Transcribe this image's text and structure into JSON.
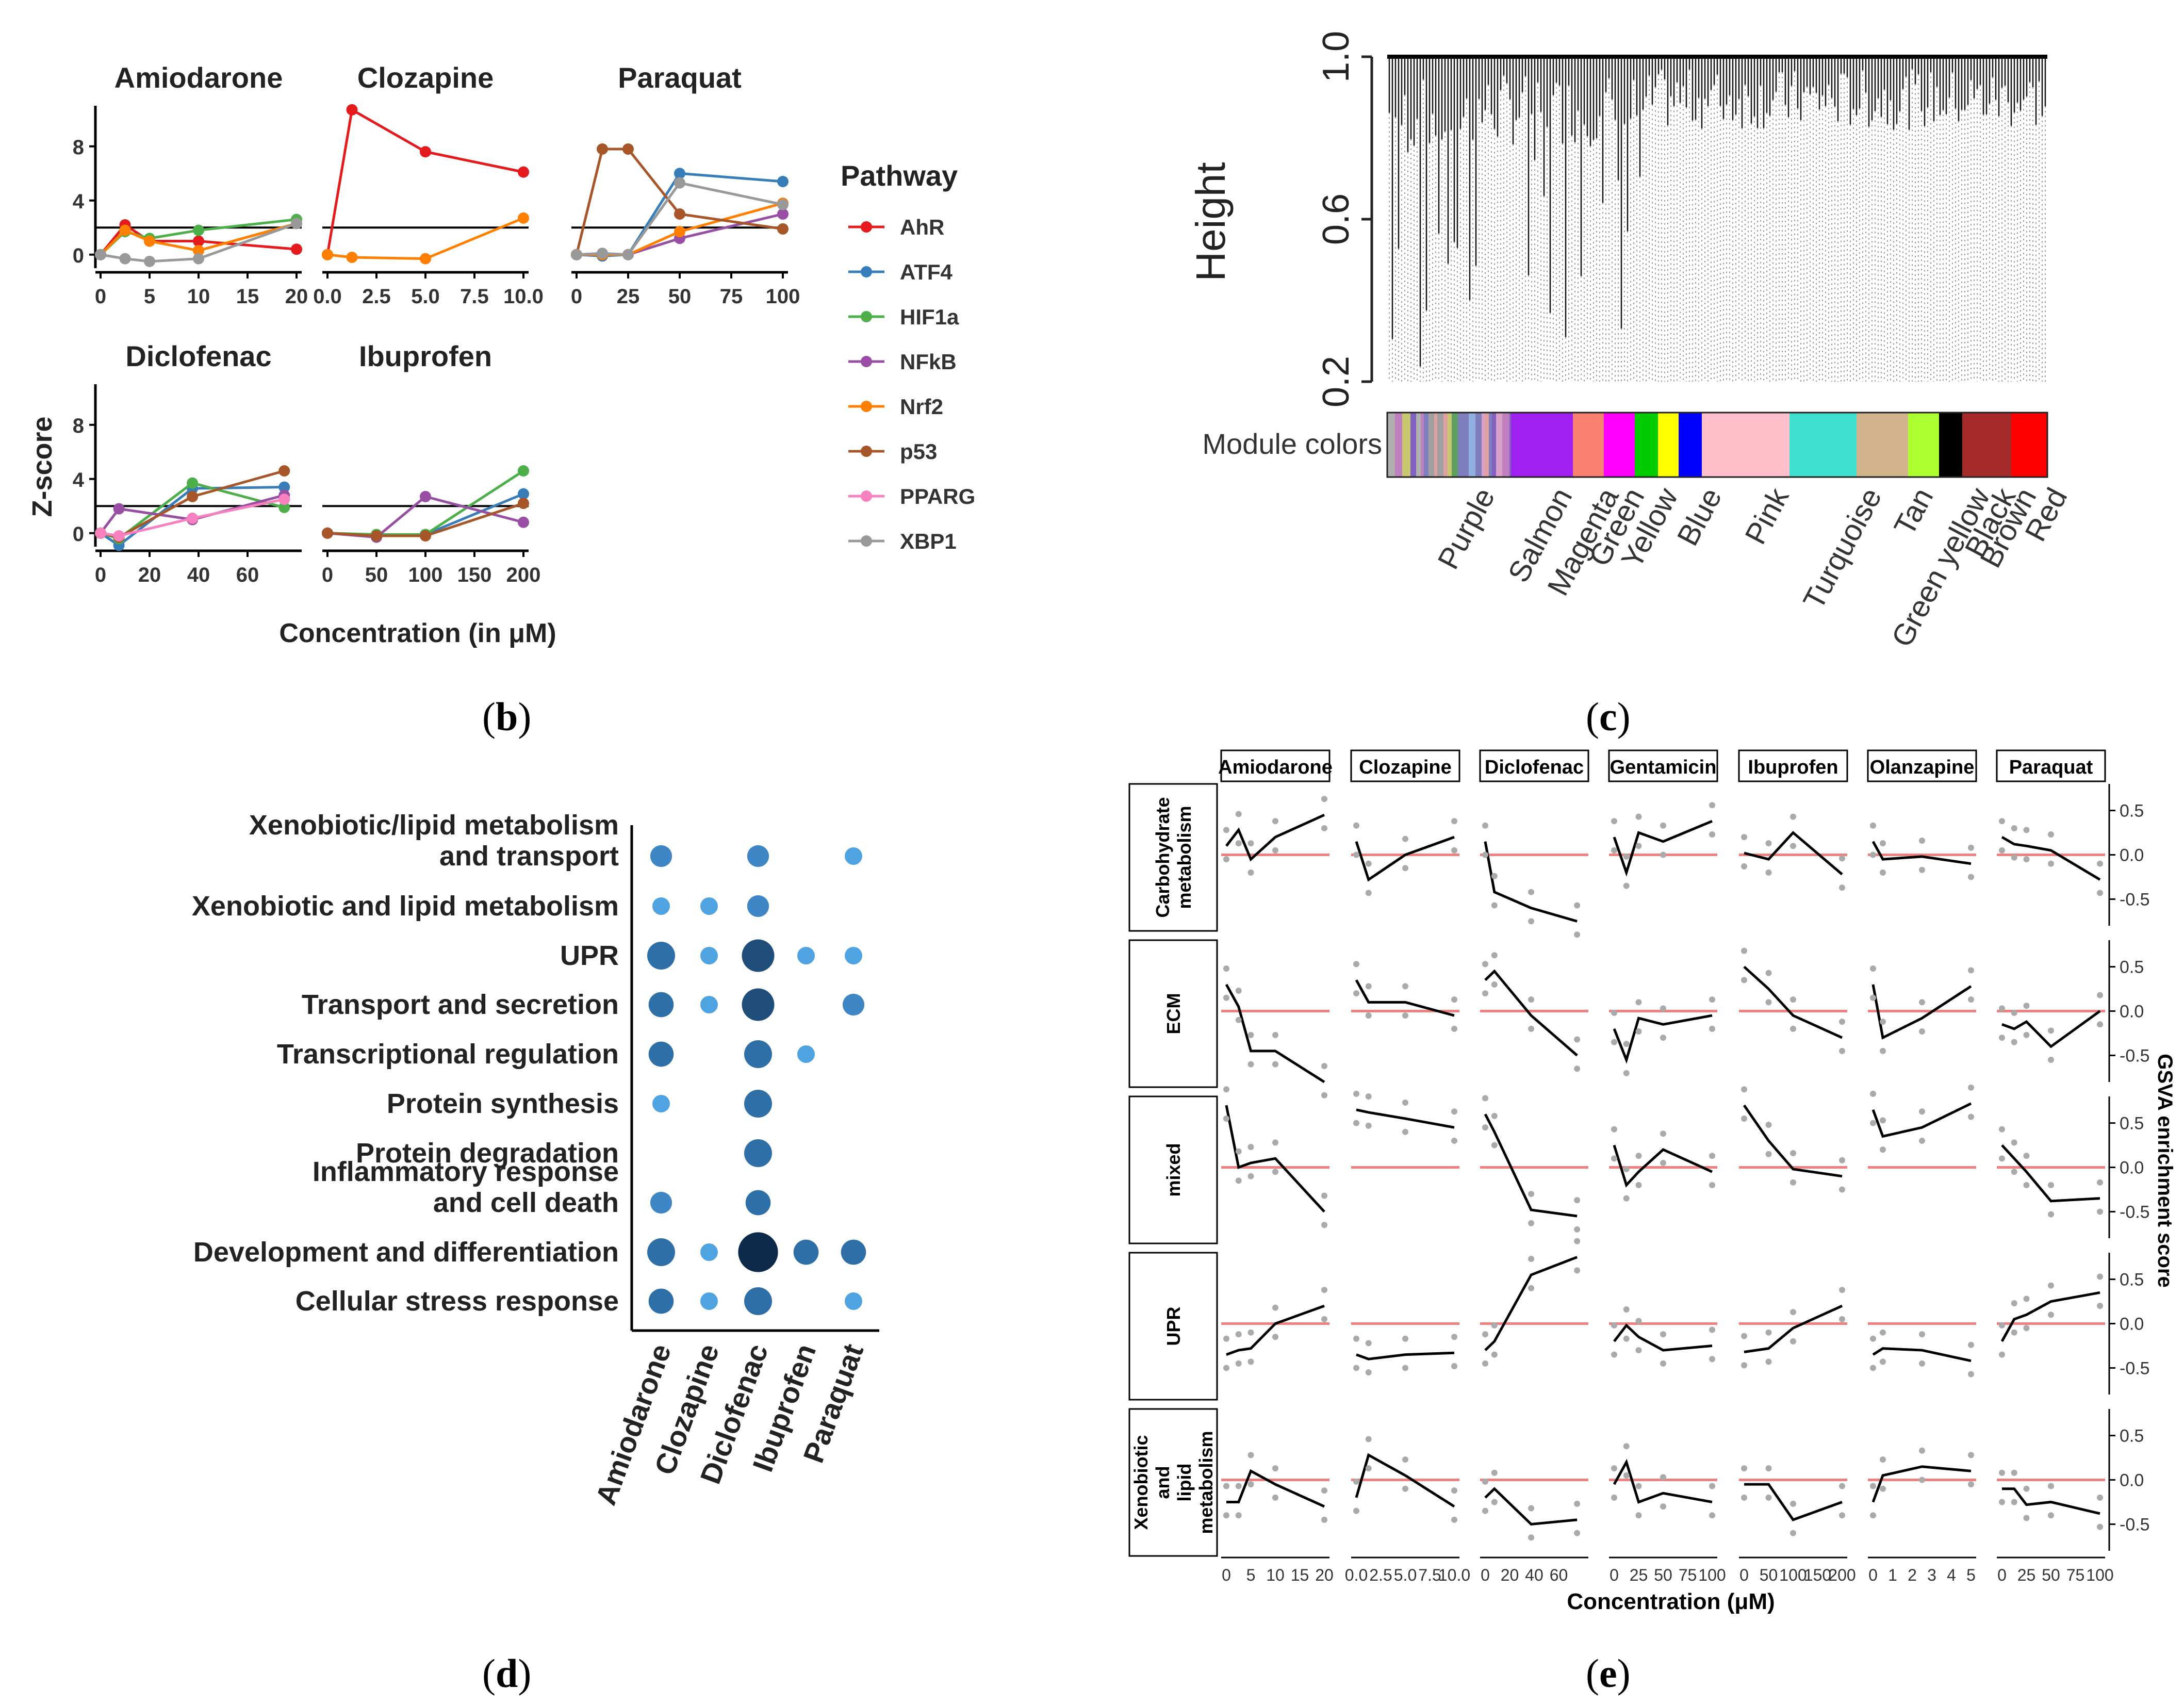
{
  "panel_labels": {
    "b": "b",
    "c": "c",
    "d": "d",
    "e": "e"
  },
  "panel_b": {
    "legend_title": "Pathway",
    "pathways": [
      {
        "name": "AhR",
        "color": "#e41a1c"
      },
      {
        "name": "ATF4",
        "color": "#377eb8"
      },
      {
        "name": "HIF1a",
        "color": "#4daf4a"
      },
      {
        "name": "NFkB",
        "color": "#984ea3"
      },
      {
        "name": "Nrf2",
        "color": "#ff7f00"
      },
      {
        "name": "p53",
        "color": "#a65628"
      },
      {
        "name": "PPARG",
        "color": "#f781bf"
      },
      {
        "name": "XBP1",
        "color": "#999999"
      }
    ],
    "ylabel": "Z-score",
    "xlabel": "Concentration (in μM)",
    "y_ticks": [
      "0",
      "4",
      "8"
    ],
    "threshold": 2
  },
  "chart_data": [
    {
      "type": "line",
      "title": "Amiodarone",
      "xlim": [
        0,
        20
      ],
      "ylim": [
        -1,
        11
      ],
      "x_ticks": [
        "0",
        "5",
        "10",
        "15",
        "20"
      ],
      "series": [
        {
          "name": "AhR",
          "x": [
            0,
            2.5,
            5,
            10,
            20
          ],
          "values": [
            0,
            2.2,
            1.0,
            1.0,
            0.4
          ]
        },
        {
          "name": "HIF1a",
          "x": [
            0,
            2.5,
            5,
            10,
            20
          ],
          "values": [
            0,
            1.7,
            1.2,
            1.8,
            2.6
          ]
        },
        {
          "name": "Nrf2",
          "x": [
            0,
            2.5,
            5,
            10,
            20
          ],
          "values": [
            0,
            1.8,
            1.0,
            0.3,
            2.3
          ]
        },
        {
          "name": "XBP1",
          "x": [
            0,
            2.5,
            5,
            10,
            20
          ],
          "values": [
            0,
            -0.3,
            -0.5,
            -0.3,
            2.3
          ]
        }
      ]
    },
    {
      "type": "line",
      "title": "Clozapine",
      "xlim": [
        0,
        10
      ],
      "ylim": [
        -1,
        11
      ],
      "x_ticks": [
        "0.0",
        "2.5",
        "5.0",
        "7.5",
        "10.0"
      ],
      "series": [
        {
          "name": "AhR",
          "x": [
            0,
            1.25,
            5,
            10
          ],
          "values": [
            0,
            10.7,
            7.6,
            6.1
          ]
        },
        {
          "name": "Nrf2",
          "x": [
            0,
            1.25,
            5,
            10
          ],
          "values": [
            0,
            -0.2,
            -0.3,
            2.7
          ]
        }
      ]
    },
    {
      "type": "line",
      "title": "Paraquat",
      "xlim": [
        0,
        100
      ],
      "ylim": [
        -1,
        11
      ],
      "x_ticks": [
        "0",
        "25",
        "50",
        "75",
        "100"
      ],
      "series": [
        {
          "name": "ATF4",
          "x": [
            0,
            12.5,
            25,
            50,
            100
          ],
          "values": [
            0,
            -0.1,
            0,
            6.0,
            5.4
          ]
        },
        {
          "name": "NFkB",
          "x": [
            0,
            12.5,
            25,
            50,
            100
          ],
          "values": [
            0,
            0.0,
            0,
            1.2,
            3.0
          ]
        },
        {
          "name": "Nrf2",
          "x": [
            0,
            12.5,
            25,
            50,
            100
          ],
          "values": [
            0,
            0,
            0,
            1.7,
            3.8
          ]
        },
        {
          "name": "p53",
          "x": [
            0,
            12.5,
            25,
            50,
            100
          ],
          "values": [
            0,
            7.8,
            7.8,
            3.0,
            1.9
          ]
        },
        {
          "name": "XBP1",
          "x": [
            0,
            12.5,
            25,
            50,
            100
          ],
          "values": [
            0,
            0.1,
            0,
            5.3,
            3.7
          ]
        }
      ]
    },
    {
      "type": "line",
      "title": "Diclofenac",
      "xlim": [
        0,
        80
      ],
      "ylim": [
        -1,
        11
      ],
      "x_ticks": [
        "0",
        "20",
        "40",
        "60"
      ],
      "series": [
        {
          "name": "ATF4",
          "x": [
            0,
            7.5,
            37.5,
            75
          ],
          "values": [
            0,
            -0.9,
            3.3,
            3.4
          ]
        },
        {
          "name": "HIF1a",
          "x": [
            0,
            7.5,
            37.5,
            75
          ],
          "values": [
            0,
            -0.4,
            3.7,
            1.9
          ]
        },
        {
          "name": "NFkB",
          "x": [
            0,
            7.5,
            37.5,
            75
          ],
          "values": [
            0,
            1.8,
            1.0,
            2.8
          ]
        },
        {
          "name": "p53",
          "x": [
            0,
            7.5,
            37.5,
            75
          ],
          "values": [
            0,
            -0.3,
            2.7,
            4.6
          ]
        },
        {
          "name": "PPARG",
          "x": [
            0,
            7.5,
            37.5,
            75
          ],
          "values": [
            0,
            -0.2,
            1.1,
            2.5
          ]
        }
      ]
    },
    {
      "type": "line",
      "title": "Ibuprofen",
      "xlim": [
        0,
        200
      ],
      "ylim": [
        -1,
        11
      ],
      "x_ticks": [
        "0",
        "50",
        "100",
        "150",
        "200"
      ],
      "series": [
        {
          "name": "ATF4",
          "x": [
            0,
            50,
            100,
            200
          ],
          "values": [
            0,
            -0.2,
            -0.1,
            2.9
          ]
        },
        {
          "name": "HIF1a",
          "x": [
            0,
            50,
            100,
            200
          ],
          "values": [
            0,
            -0.1,
            -0.1,
            4.6
          ]
        },
        {
          "name": "NFkB",
          "x": [
            0,
            50,
            100,
            200
          ],
          "values": [
            0,
            -0.3,
            2.7,
            0.8
          ]
        },
        {
          "name": "p53",
          "x": [
            0,
            50,
            100,
            200
          ],
          "values": [
            0,
            -0.2,
            -0.2,
            2.2
          ]
        }
      ]
    },
    {
      "type": "dendrogram",
      "ylabel": "Height",
      "y_ticks": [
        "0.2",
        "0.6",
        "1.0"
      ],
      "ylim": [
        0.2,
        1.0
      ],
      "color_bar_label": "Module colors",
      "modules": [
        {
          "name": "Purple",
          "color": "#a020f0"
        },
        {
          "name": "Salmon",
          "color": "#fa8072"
        },
        {
          "name": "Magenta",
          "color": "#ff00ff"
        },
        {
          "name": "Green",
          "color": "#00cc00"
        },
        {
          "name": "Yellow",
          "color": "#ffff00"
        },
        {
          "name": "Blue",
          "color": "#0000ff"
        },
        {
          "name": "Pink",
          "color": "#ffc0cb"
        },
        {
          "name": "Turquoise",
          "color": "#40e0d0"
        },
        {
          "name": "Tan",
          "color": "#d2b48c"
        },
        {
          "name": "Green yellow",
          "color": "#adff2f"
        },
        {
          "name": "Black",
          "color": "#000000"
        },
        {
          "name": "Brown",
          "color": "#a52a2a"
        },
        {
          "name": "Red",
          "color": "#ff0000"
        }
      ]
    },
    {
      "type": "scatter",
      "subtype": "dot-plot",
      "categories_y": [
        "Xenobiotic/lipid metabolism\nand transport",
        "Xenobiotic and lipid metabolism",
        "UPR",
        "Transport and secretion",
        "Transcriptional regulation",
        "Protein synthesis",
        "Protein degradation",
        "Inflammatory response\nand cell death",
        "Development and differentiation",
        "Cellular stress response"
      ],
      "categories_x": [
        "Amiodarone",
        "Clozapine",
        "Diclofenac",
        "Ibuprofen",
        "Paraquat"
      ],
      "points": [
        [
          0,
          0,
          2
        ],
        [
          0,
          2,
          2
        ],
        [
          0,
          4,
          1
        ],
        [
          1,
          0,
          1
        ],
        [
          1,
          1,
          1
        ],
        [
          1,
          2,
          2
        ],
        [
          2,
          0,
          4
        ],
        [
          2,
          1,
          1
        ],
        [
          2,
          2,
          6
        ],
        [
          2,
          3,
          1
        ],
        [
          2,
          4,
          1
        ],
        [
          3,
          0,
          3
        ],
        [
          3,
          1,
          1
        ],
        [
          3,
          2,
          6
        ],
        [
          3,
          4,
          2
        ],
        [
          4,
          0,
          3
        ],
        [
          4,
          2,
          4
        ],
        [
          4,
          3,
          1
        ],
        [
          5,
          0,
          1
        ],
        [
          5,
          2,
          4
        ],
        [
          6,
          2,
          4
        ],
        [
          7,
          0,
          2
        ],
        [
          7,
          2,
          3
        ],
        [
          8,
          0,
          4
        ],
        [
          8,
          1,
          1
        ],
        [
          8,
          2,
          10
        ],
        [
          8,
          3,
          3
        ],
        [
          8,
          4,
          3
        ],
        [
          9,
          0,
          3
        ],
        [
          9,
          1,
          1
        ],
        [
          9,
          2,
          4
        ],
        [
          9,
          4,
          1
        ]
      ]
    },
    {
      "type": "line",
      "subtype": "faceted-gsva",
      "columns": [
        "Amiodarone",
        "Clozapine",
        "Diclofenac",
        "Gentamicin",
        "Ibuprofen",
        "Olanzapine",
        "Paraquat"
      ],
      "rows": [
        "Carbohydrate\nmetabolism",
        "ECM",
        "mixed",
        "UPR",
        "Xenobiotic\nand\nlipid\nmetabolism"
      ],
      "x_axes": [
        {
          "xlim": [
            0,
            20
          ],
          "ticks": [
            "0",
            "5",
            "10",
            "15",
            "20"
          ],
          "x": [
            0,
            2.5,
            5,
            10,
            20
          ]
        },
        {
          "xlim": [
            0,
            10
          ],
          "ticks": [
            "0.0",
            "2.5",
            "5.0",
            "7.5",
            "10.0"
          ],
          "x": [
            0,
            1.25,
            5,
            10
          ]
        },
        {
          "xlim": [
            0,
            80
          ],
          "ticks": [
            "0",
            "20",
            "40",
            "60"
          ],
          "x": [
            0,
            7.5,
            37.5,
            75
          ]
        },
        {
          "xlim": [
            0,
            100
          ],
          "ticks": [
            "0",
            "25",
            "50",
            "75",
            "100"
          ],
          "x": [
            0,
            12.5,
            25,
            50,
            100
          ]
        },
        {
          "xlim": [
            0,
            200
          ],
          "ticks": [
            "0",
            "50",
            "100",
            "150",
            "200"
          ],
          "x": [
            0,
            50,
            100,
            200
          ]
        },
        {
          "xlim": [
            0,
            5
          ],
          "ticks": [
            "0",
            "1",
            "2",
            "3",
            "4",
            "5"
          ],
          "x": [
            0,
            0.5,
            2.5,
            5
          ]
        },
        {
          "xlim": [
            0,
            100
          ],
          "ticks": [
            "0",
            "25",
            "50",
            "75",
            "100"
          ],
          "x": [
            0,
            12.5,
            25,
            50,
            100
          ]
        }
      ],
      "ylim": [
        -0.8,
        0.8
      ],
      "y_ticks": [
        "0.5",
        "0.0",
        "-0.5"
      ],
      "y_tick_values": [
        0.5,
        0.0,
        -0.5
      ],
      "xlabel": "Concentration (μM)",
      "ylabel": "GSVA enrichment score",
      "means": [
        [
          [
            0.1,
            0.28,
            -0.05,
            0.2,
            0.45
          ],
          [
            0.15,
            -0.28,
            0.0,
            0.2
          ],
          [
            0.15,
            -0.42,
            -0.6,
            -0.75
          ],
          [
            0.2,
            -0.2,
            0.25,
            0.15,
            0.38
          ],
          [
            0.02,
            -0.05,
            0.25,
            -0.22
          ],
          [
            0.15,
            -0.05,
            -0.02,
            -0.1
          ],
          [
            0.2,
            0.12,
            0.1,
            0.05,
            -0.28
          ]
        ],
        [
          [
            0.3,
            0.05,
            -0.45,
            -0.45,
            -0.8
          ],
          [
            0.35,
            0.1,
            0.1,
            -0.05
          ],
          [
            0.35,
            0.45,
            -0.05,
            -0.5
          ],
          [
            -0.2,
            -0.55,
            -0.08,
            -0.15,
            -0.05
          ],
          [
            0.5,
            0.25,
            -0.05,
            -0.3
          ],
          [
            0.3,
            -0.3,
            -0.08,
            0.28
          ],
          [
            -0.15,
            -0.2,
            -0.12,
            -0.4,
            0.0
          ]
        ],
        [
          [
            0.7,
            0.0,
            0.05,
            0.1,
            -0.5
          ],
          [
            0.65,
            0.62,
            0.55,
            0.45
          ],
          [
            0.6,
            0.4,
            -0.48,
            -0.55
          ],
          [
            0.25,
            -0.2,
            -0.05,
            0.2,
            -0.05
          ],
          [
            0.7,
            0.3,
            -0.02,
            -0.1
          ],
          [
            0.65,
            0.35,
            0.45,
            0.72
          ],
          [
            0.25,
            0.1,
            -0.05,
            -0.38,
            -0.35
          ]
        ],
        [
          [
            -0.35,
            -0.3,
            -0.28,
            0.0,
            0.2
          ],
          [
            -0.35,
            -0.4,
            -0.35,
            -0.33
          ],
          [
            -0.3,
            -0.2,
            0.55,
            0.75
          ],
          [
            -0.2,
            -0.02,
            -0.15,
            -0.3,
            -0.25
          ],
          [
            -0.32,
            -0.28,
            -0.05,
            0.2
          ],
          [
            -0.35,
            -0.28,
            -0.3,
            -0.42
          ],
          [
            -0.2,
            0.05,
            0.1,
            0.25,
            0.35
          ]
        ],
        [
          [
            -0.25,
            -0.25,
            0.1,
            -0.05,
            -0.3
          ],
          [
            -0.2,
            0.28,
            0.05,
            -0.3
          ],
          [
            -0.2,
            -0.1,
            -0.5,
            -0.45
          ],
          [
            -0.05,
            0.2,
            -0.25,
            -0.15,
            -0.25
          ],
          [
            -0.05,
            -0.05,
            -0.45,
            -0.25
          ],
          [
            -0.25,
            0.05,
            0.15,
            0.1
          ],
          [
            -0.1,
            -0.1,
            -0.28,
            -0.25,
            -0.38
          ]
        ]
      ]
    }
  ]
}
